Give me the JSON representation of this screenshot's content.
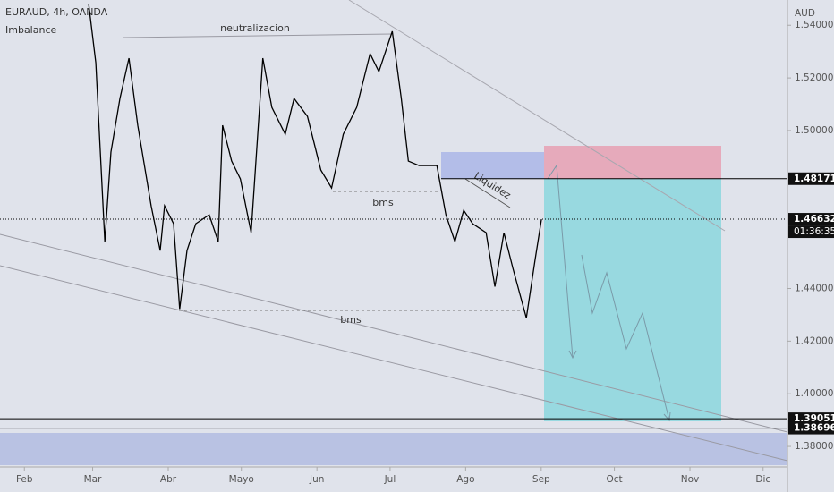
{
  "chart_data": {
    "type": "line",
    "title": "EURAUD, 4h, OANDA",
    "indicator": "Imbalance",
    "currency": "AUD",
    "x": [
      58.4,
      61.3,
      65.0,
      67.5,
      71.2,
      74.9,
      78.5,
      84.0,
      87.7,
      89.5,
      93.2,
      95.7,
      98.7,
      102.3,
      107.8,
      111.5,
      113.3,
      117.0,
      120.6,
      125.0,
      129.8,
      133.5,
      139.0,
      142.6,
      148.1,
      153.6,
      158.0,
      162.8,
      168.3,
      173.8,
      177.4,
      182.9,
      186.6,
      189.5,
      193.9,
      201.2,
      204.9,
      208.6,
      212.2,
      215.9,
      221.4,
      225.0,
      228.7,
      232.4,
      237.9,
      241.5,
      244.1
    ],
    "values": [
      1.5479,
      1.5258,
      1.4578,
      1.4918,
      1.5122,
      1.5275,
      1.502,
      1.4714,
      1.4544,
      1.4714,
      1.4646,
      1.4322,
      1.4544,
      1.4646,
      1.468,
      1.4578,
      1.502,
      1.4884,
      1.4816,
      1.4612,
      1.5275,
      1.5088,
      1.4986,
      1.5122,
      1.5054,
      1.485,
      1.4782,
      1.4986,
      1.5088,
      1.5292,
      1.5224,
      1.5377,
      1.5122,
      1.4884,
      1.4867,
      1.4867,
      1.468,
      1.4578,
      1.4697,
      1.4646,
      1.4612,
      1.4407,
      1.4612,
      1.4476,
      1.4288,
      1.451,
      1.4663
    ],
    "color": "#000000",
    "xlim": [
      22,
      345
    ],
    "xticks": [
      {
        "value": 32,
        "label": "Feb"
      },
      {
        "value": 60,
        "label": "Mar"
      },
      {
        "value": 91,
        "label": "Abr"
      },
      {
        "value": 121,
        "label": "Mayo"
      },
      {
        "value": 152,
        "label": "Jun"
      },
      {
        "value": 182,
        "label": "Jul"
      },
      {
        "value": 213,
        "label": "Ago"
      },
      {
        "value": 244,
        "label": "Sep"
      },
      {
        "value": 274,
        "label": "Oct"
      },
      {
        "value": 305,
        "label": "Nov"
      },
      {
        "value": 335,
        "label": "Dic"
      }
    ],
    "ylim": [
      1.3722,
      1.5496
    ],
    "yticks": [
      {
        "value": 1.38,
        "label": "1.38000"
      },
      {
        "value": 1.4,
        "label": "1.40000"
      },
      {
        "value": 1.42,
        "label": "1.42000"
      },
      {
        "value": 1.44,
        "label": "1.44000"
      },
      {
        "value": 1.5,
        "label": "1.50000"
      },
      {
        "value": 1.52,
        "label": "1.52000"
      },
      {
        "value": 1.54,
        "label": "1.54000"
      }
    ],
    "price_labels": [
      1.48171,
      1.46632,
      1.39051,
      1.38696
    ],
    "countdown": "01:36:35",
    "annotations": [
      "neutralizacion",
      "bms",
      "bms",
      "Liquidez"
    ]
  }
}
